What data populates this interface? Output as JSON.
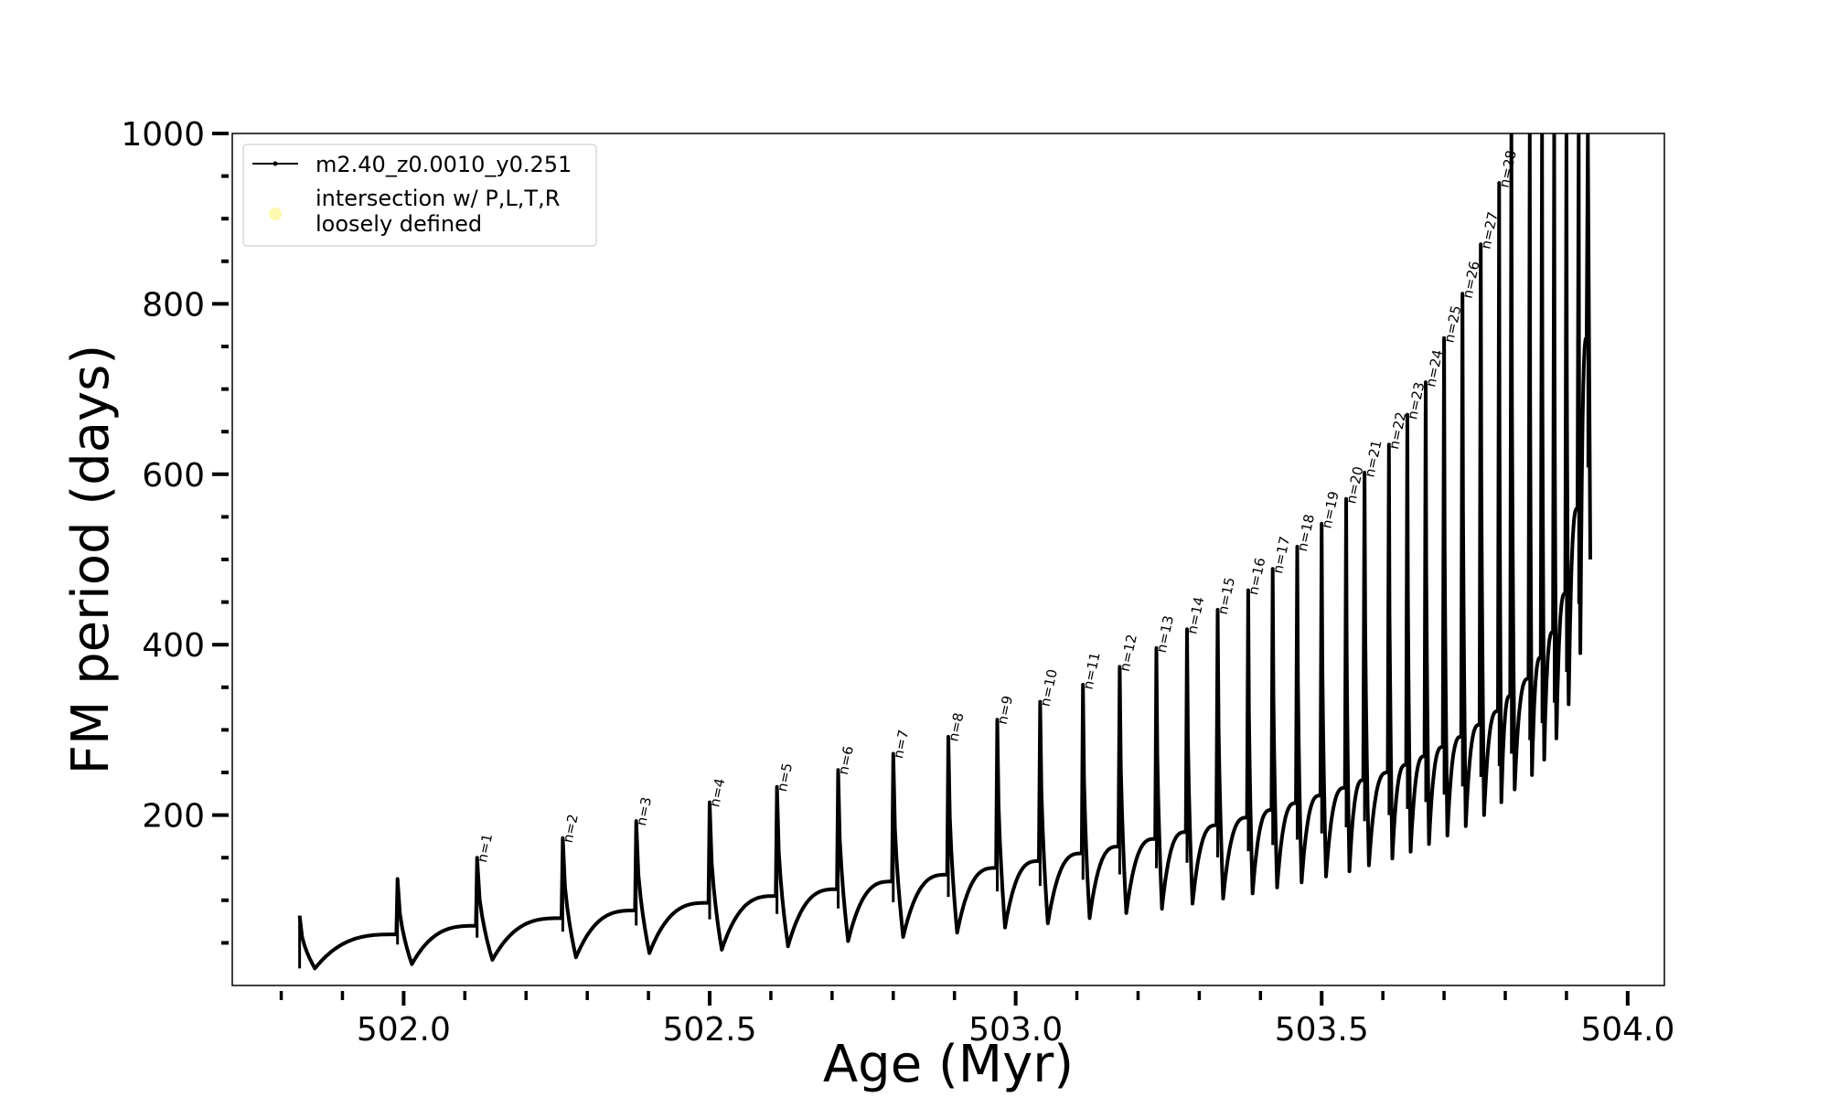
{
  "chart_data": {
    "type": "line",
    "title": "",
    "xlabel": "Age (Myr)",
    "ylabel": "FM period (days)",
    "xlim": [
      501.72,
      504.06
    ],
    "ylim": [
      0,
      1000
    ],
    "xticks": [
      "502.0",
      "502.5",
      "503.0",
      "503.5",
      "504.0"
    ],
    "xtick_values": [
      502.0,
      502.5,
      503.0,
      503.5,
      504.0
    ],
    "yticks": [
      "200",
      "400",
      "600",
      "800",
      "1000"
    ],
    "ytick_values": [
      200,
      400,
      600,
      800,
      1000
    ],
    "grid": false,
    "legend_position": "top-left",
    "legend": {
      "series_label": "m2.40_z0.0010_y0.251",
      "marker_label_line1": "intersection w/ P,L,T,R",
      "marker_label_line2": "loosely defined",
      "marker_color": "#fff9b0"
    },
    "series_color": "#000000",
    "series": [
      {
        "name": "m2.40_z0.0010_y0.251",
        "pulses": [
          {
            "age": 501.83,
            "peak": 82,
            "trough_offset": 0.02,
            "trough": 20
          },
          {
            "age": 501.99,
            "peak": 125,
            "base": 60,
            "trough": 25
          },
          {
            "age": 502.12,
            "peak": 150,
            "base": 70,
            "trough": 30,
            "label": "n=1"
          },
          {
            "age": 502.26,
            "peak": 173,
            "base": 79,
            "trough": 33,
            "label": "n=2"
          },
          {
            "age": 502.38,
            "peak": 193,
            "base": 88,
            "trough": 38,
            "label": "n=3"
          },
          {
            "age": 502.5,
            "peak": 215,
            "base": 97,
            "trough": 42,
            "label": "n=4"
          },
          {
            "age": 502.61,
            "peak": 233,
            "base": 105,
            "trough": 46,
            "label": "n=5"
          },
          {
            "age": 502.71,
            "peak": 253,
            "base": 113,
            "trough": 52,
            "label": "n=6"
          },
          {
            "age": 502.8,
            "peak": 272,
            "base": 122,
            "trough": 57,
            "label": "n=7"
          },
          {
            "age": 502.89,
            "peak": 292,
            "base": 130,
            "trough": 62,
            "label": "n=8"
          },
          {
            "age": 502.97,
            "peak": 312,
            "base": 138,
            "trough": 68,
            "label": "n=9"
          },
          {
            "age": 503.04,
            "peak": 333,
            "base": 146,
            "trough": 73,
            "label": "n=10"
          },
          {
            "age": 503.11,
            "peak": 353,
            "base": 155,
            "trough": 79,
            "label": "n=11"
          },
          {
            "age": 503.17,
            "peak": 374,
            "base": 163,
            "trough": 85,
            "label": "n=12"
          },
          {
            "age": 503.23,
            "peak": 396,
            "base": 172,
            "trough": 90,
            "label": "n=13"
          },
          {
            "age": 503.28,
            "peak": 418,
            "base": 180,
            "trough": 96,
            "label": "n=14"
          },
          {
            "age": 503.33,
            "peak": 441,
            "base": 188,
            "trough": 102,
            "label": "n=15"
          },
          {
            "age": 503.38,
            "peak": 464,
            "base": 197,
            "trough": 108,
            "label": "n=16"
          },
          {
            "age": 503.42,
            "peak": 489,
            "base": 206,
            "trough": 115,
            "label": "n=17"
          },
          {
            "age": 503.46,
            "peak": 515,
            "base": 214,
            "trough": 121,
            "label": "n=18"
          },
          {
            "age": 503.5,
            "peak": 542,
            "base": 223,
            "trough": 128,
            "label": "n=19"
          },
          {
            "age": 503.54,
            "peak": 571,
            "base": 232,
            "trough": 134,
            "label": "n=20"
          },
          {
            "age": 503.57,
            "peak": 602,
            "base": 241,
            "trough": 141,
            "label": "n=21"
          },
          {
            "age": 503.61,
            "peak": 635,
            "base": 250,
            "trough": 149,
            "label": "n=22"
          },
          {
            "age": 503.64,
            "peak": 670,
            "base": 259,
            "trough": 157,
            "label": "n=23"
          },
          {
            "age": 503.67,
            "peak": 708,
            "base": 269,
            "trough": 166,
            "label": "n=24"
          },
          {
            "age": 503.7,
            "peak": 760,
            "base": 280,
            "trough": 176,
            "label": "n=25"
          },
          {
            "age": 503.73,
            "peak": 812,
            "base": 292,
            "trough": 187,
            "label": "n=26"
          },
          {
            "age": 503.76,
            "peak": 870,
            "base": 306,
            "trough": 200,
            "label": "n=27"
          },
          {
            "age": 503.79,
            "peak": 942,
            "base": 322,
            "trough": 215,
            "label": "n=28"
          },
          {
            "age": 503.81,
            "peak": 1000,
            "base": 340,
            "trough": 230
          },
          {
            "age": 503.84,
            "peak": 1000,
            "base": 360,
            "trough": 247
          },
          {
            "age": 503.86,
            "peak": 1000,
            "base": 385,
            "trough": 265
          },
          {
            "age": 503.88,
            "peak": 1000,
            "base": 415,
            "trough": 290
          },
          {
            "age": 503.9,
            "peak": 1000,
            "base": 460,
            "trough": 330
          },
          {
            "age": 503.92,
            "peak": 1000,
            "base": 560,
            "trough": 390
          },
          {
            "age": 503.935,
            "peak": 1000,
            "base": 760,
            "trough": 500
          }
        ]
      }
    ]
  }
}
